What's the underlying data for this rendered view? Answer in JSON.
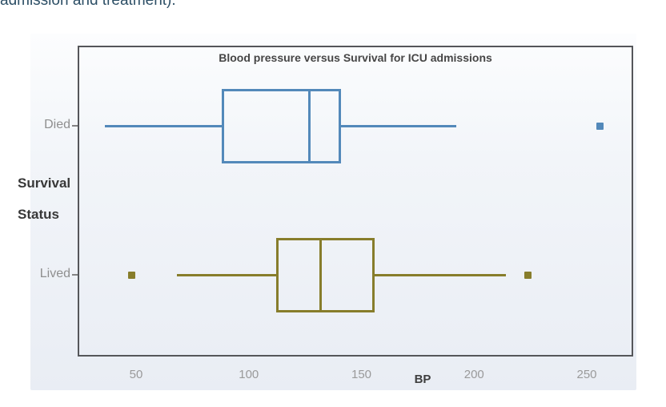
{
  "page": {
    "top_text_fragment": "admission and treatment)."
  },
  "chart_data": {
    "type": "boxplot",
    "orientation": "horizontal",
    "title": "Blood pressure versus Survival for ICU admissions",
    "xlabel": "BP",
    "ylabel": "Survival Status",
    "ylabel_lines": [
      "Survival",
      "Status"
    ],
    "x_ticks": [
      50,
      100,
      150,
      200,
      250
    ],
    "x_range": [
      24,
      271
    ],
    "grid": false,
    "categories": [
      "Died",
      "Lived"
    ],
    "series": [
      {
        "name": "Died",
        "color": "#5389ba",
        "whisker_low": 36,
        "q1": 88,
        "median": 127,
        "q3": 141,
        "whisker_high": 192,
        "outliers": [
          256
        ]
      },
      {
        "name": "Lived",
        "color": "#877d2b",
        "whisker_low": 68,
        "q1": 112,
        "median": 132,
        "q3": 156,
        "whisker_high": 214,
        "outliers": [
          48,
          224
        ]
      }
    ]
  }
}
